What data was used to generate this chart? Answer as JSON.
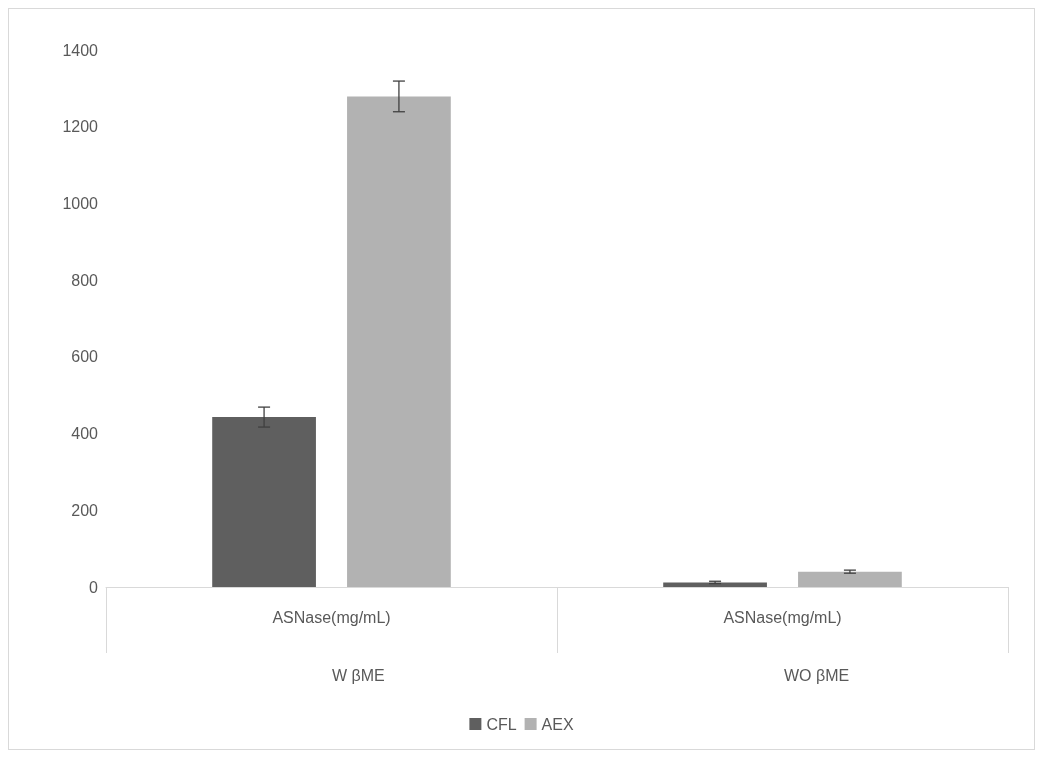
{
  "chart_data": {
    "type": "bar",
    "categories": [
      "ASNase(mg/mL)",
      "ASNase(mg/mL)"
    ],
    "annotations": [
      "W βME",
      "WO βME"
    ],
    "series": [
      {
        "name": "CFL",
        "color": "#5f5f5f",
        "values": [
          443,
          12
        ],
        "errors": [
          26,
          3
        ]
      },
      {
        "name": "AEX",
        "color": "#b2b2b2",
        "values": [
          1279,
          40
        ],
        "errors": [
          40,
          4
        ]
      }
    ],
    "ylim": [
      0,
      1400
    ],
    "yticks": [
      0,
      200,
      400,
      600,
      800,
      1000,
      1200,
      1400
    ],
    "grid": false,
    "legend": "bottom"
  }
}
